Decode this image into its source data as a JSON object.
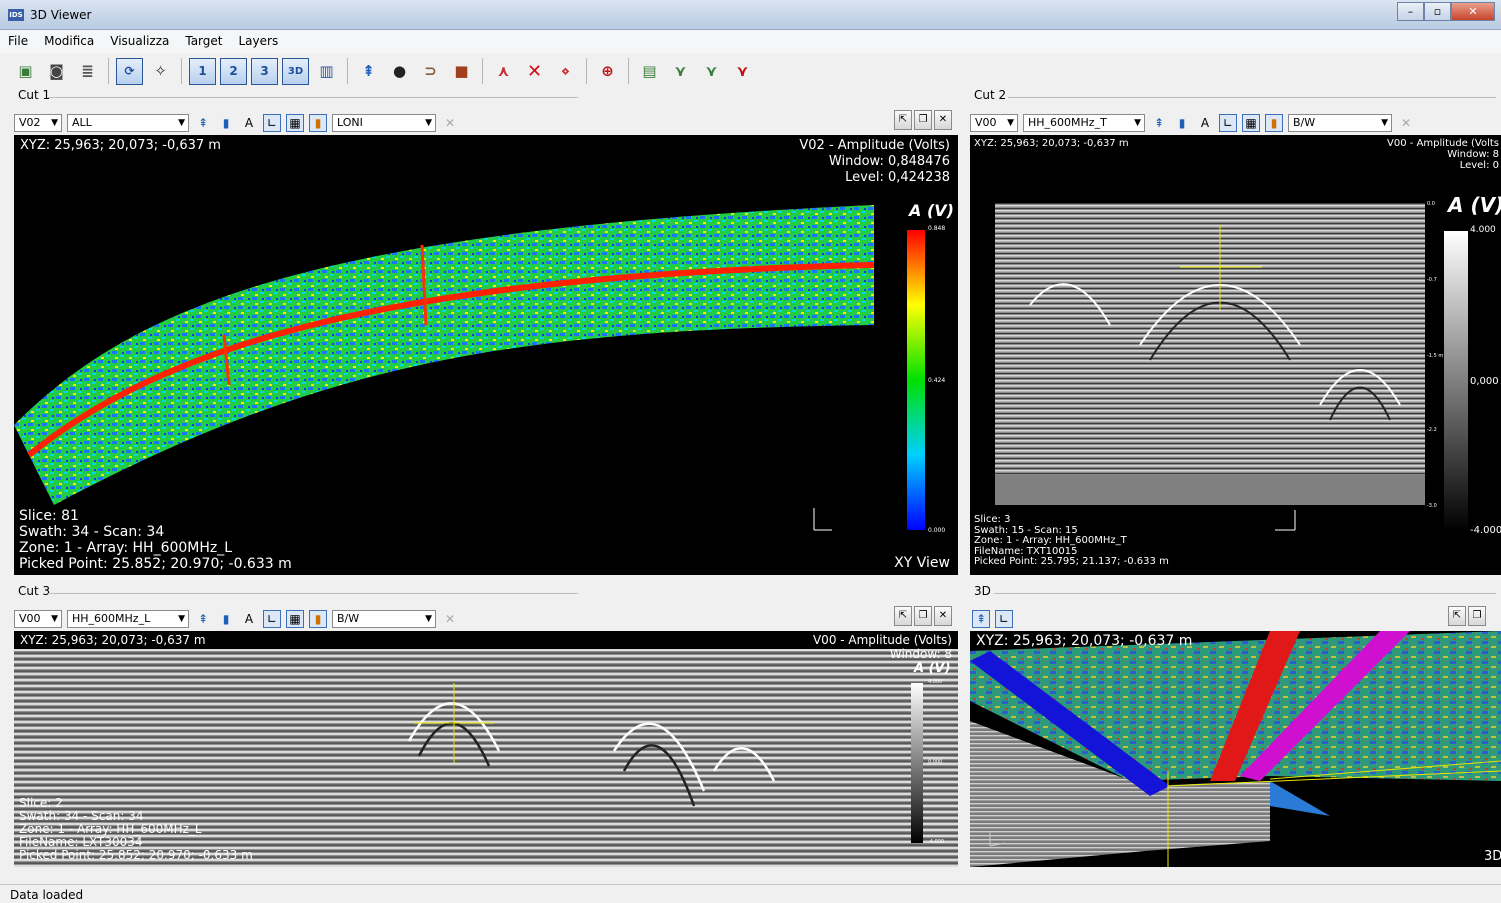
{
  "window": {
    "icon_label": "IDS",
    "title": "3D Viewer",
    "buttons": [
      "–",
      "▫",
      "✕"
    ]
  },
  "menu": [
    "File",
    "Modifica",
    "Visualizza",
    "Target",
    "Layers"
  ],
  "toolbar": {
    "view_buttons": [
      "1",
      "2",
      "3",
      "3D"
    ]
  },
  "cut1": {
    "label": "Cut 1",
    "channel": "V02",
    "array": "ALL",
    "palette": "LONI",
    "xyz": "XYZ:  25,963; 20,073; -0,637 m",
    "title": "V02 - Amplitude (Volts)",
    "window": "Window: 0,848476",
    "level": "Level: 0,424238",
    "scale_title": "A (V)",
    "scale_ticks": [
      "0.848",
      "0.424",
      "0.000"
    ],
    "info": [
      "Slice: 81",
      "Swath: 34 - Scan: 34",
      "Zone: 1 - Array: HH_600MHz_L",
      "Picked Point:  25.852; 20.970; -0.633 m"
    ],
    "view_name": "XY View"
  },
  "cut2": {
    "label": "Cut 2",
    "channel": "V00",
    "array": "HH_600MHz_T",
    "palette": "B/W",
    "xyz": "XYZ: 25,963; 20,073; -0,637 m",
    "title": "V00 - Amplitude (Volts",
    "window": "Window: 8",
    "level": "Level: 0",
    "scale_title": "A (V)",
    "scale_ticks": [
      "4.000",
      "0,000",
      "-4.000"
    ],
    "depth_ticks": [
      "0.0",
      "-0.7",
      "-1.5 m",
      "-2.2",
      "-3.0"
    ],
    "info": [
      "Slice:  3",
      "Swath: 15 - Scan: 15",
      "Zone: 1 - Array: HH_600MHz_T",
      "FileName: TXT10015",
      "Picked Point:  25.795; 21.137; -0.633 m"
    ]
  },
  "cut3": {
    "label": "Cut 3",
    "channel": "V00",
    "array": "HH_600MHz_L",
    "palette": "B/W",
    "xyz": "XYZ:  25,963; 20,073; -0,637 m",
    "title": "V00 - Amplitude (Volts)",
    "window": "Window: 8",
    "scale_title": "A (V)",
    "scale_ticks": [
      "4.000",
      "0.000",
      "-4.000"
    ],
    "info": [
      "Slice: 2",
      "Swath: 34 - Scan: 34",
      "Zone: 1 - Array: HH_600MHz_L",
      "FileName: LXT30034",
      "Picked Point:  25.852; 20.970; -0.633 m"
    ]
  },
  "view3d": {
    "label": "3D",
    "xyz": "XYZ:  25,963; 20,073; -0,637 m",
    "corner": "3D"
  },
  "status": "Data loaded",
  "colors": {
    "rainbow": [
      "#ff0000",
      "#ffff00",
      "#00ff00",
      "#00ffff",
      "#0000ff"
    ],
    "pick_cross": "#e6e600"
  }
}
